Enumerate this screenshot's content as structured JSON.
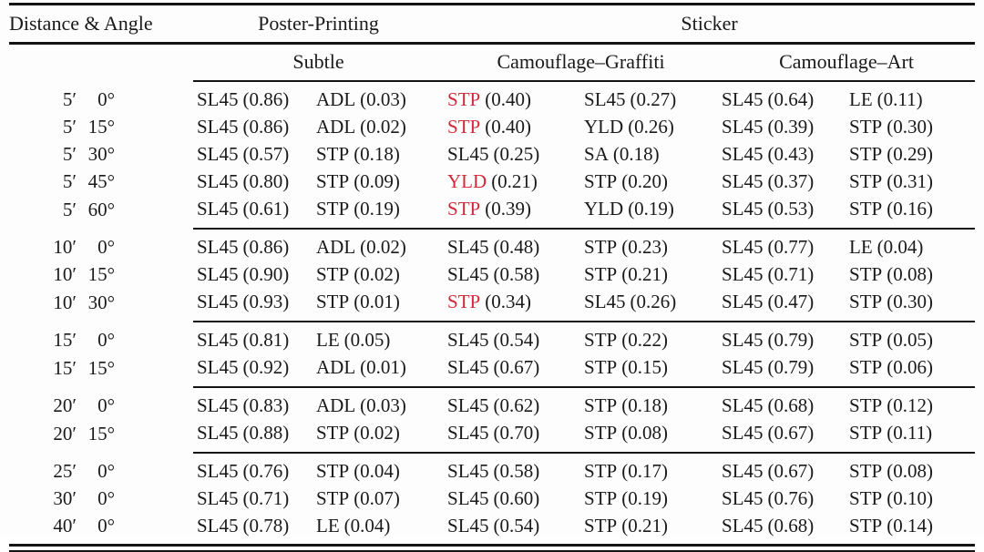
{
  "colors": {
    "red": "#d2293a",
    "ink": "#1a1a1a"
  },
  "table": {
    "header": {
      "col1": "Distance & Angle",
      "group_poster": "Poster-Printing",
      "group_sticker": "Sticker",
      "sub_subtle": "Subtle",
      "sub_graffiti": "Camouflage–Graffiti",
      "sub_art": "Camouflage–Art"
    },
    "groups": [
      {
        "rows": [
          {
            "d": "5′",
            "a": "0°",
            "cells": [
              {
                "m": "SL45",
                "v": "(0.86)"
              },
              {
                "m": "ADL",
                "v": "(0.03)"
              },
              {
                "m": "STP",
                "v": "(0.40)",
                "red": true
              },
              {
                "m": "SL45",
                "v": "(0.27)"
              },
              {
                "m": "SL45",
                "v": "(0.64)"
              },
              {
                "m": "LE",
                "v": "(0.11)"
              }
            ]
          },
          {
            "d": "5′",
            "a": "15°",
            "cells": [
              {
                "m": "SL45",
                "v": "(0.86)"
              },
              {
                "m": "ADL",
                "v": "(0.02)"
              },
              {
                "m": "STP",
                "v": "(0.40)",
                "red": true
              },
              {
                "m": "YLD",
                "v": "(0.26)"
              },
              {
                "m": "SL45",
                "v": "(0.39)"
              },
              {
                "m": "STP",
                "v": "(0.30)"
              }
            ]
          },
          {
            "d": "5′",
            "a": "30°",
            "cells": [
              {
                "m": "SL45",
                "v": "(0.57)"
              },
              {
                "m": "STP",
                "v": "(0.18)"
              },
              {
                "m": "SL45",
                "v": "(0.25)"
              },
              {
                "m": "SA",
                "v": "(0.18)"
              },
              {
                "m": "SL45",
                "v": "(0.43)"
              },
              {
                "m": "STP",
                "v": "(0.29)"
              }
            ]
          },
          {
            "d": "5′",
            "a": "45°",
            "cells": [
              {
                "m": "SL45",
                "v": "(0.80)"
              },
              {
                "m": "STP",
                "v": "(0.09)"
              },
              {
                "m": "YLD",
                "v": "(0.21)",
                "red": true
              },
              {
                "m": "STP",
                "v": "(0.20)"
              },
              {
                "m": "SL45",
                "v": "(0.37)"
              },
              {
                "m": "STP",
                "v": "(0.31)"
              }
            ]
          },
          {
            "d": "5′",
            "a": "60°",
            "cells": [
              {
                "m": "SL45",
                "v": "(0.61)"
              },
              {
                "m": "STP",
                "v": "(0.19)"
              },
              {
                "m": "STP",
                "v": "(0.39)",
                "red": true
              },
              {
                "m": "YLD",
                "v": "(0.19)"
              },
              {
                "m": "SL45",
                "v": "(0.53)"
              },
              {
                "m": "STP",
                "v": "(0.16)"
              }
            ]
          }
        ]
      },
      {
        "rows": [
          {
            "d": "10′",
            "a": "0°",
            "cells": [
              {
                "m": "SL45",
                "v": "(0.86)"
              },
              {
                "m": "ADL",
                "v": "(0.02)"
              },
              {
                "m": "SL45",
                "v": "(0.48)"
              },
              {
                "m": "STP",
                "v": "(0.23)"
              },
              {
                "m": "SL45",
                "v": "(0.77)"
              },
              {
                "m": "LE",
                "v": "(0.04)"
              }
            ]
          },
          {
            "d": "10′",
            "a": "15°",
            "cells": [
              {
                "m": "SL45",
                "v": "(0.90)"
              },
              {
                "m": "STP",
                "v": "(0.02)"
              },
              {
                "m": "SL45",
                "v": "(0.58)"
              },
              {
                "m": "STP",
                "v": "(0.21)"
              },
              {
                "m": "SL45",
                "v": "(0.71)"
              },
              {
                "m": "STP",
                "v": "(0.08)"
              }
            ]
          },
          {
            "d": "10′",
            "a": "30°",
            "cells": [
              {
                "m": "SL45",
                "v": "(0.93)"
              },
              {
                "m": "STP",
                "v": "(0.01)"
              },
              {
                "m": "STP",
                "v": "(0.34)",
                "red": true
              },
              {
                "m": "SL45",
                "v": "(0.26)"
              },
              {
                "m": "SL45",
                "v": "(0.47)"
              },
              {
                "m": "STP",
                "v": "(0.30)"
              }
            ]
          }
        ]
      },
      {
        "rows": [
          {
            "d": "15′",
            "a": "0°",
            "cells": [
              {
                "m": "SL45",
                "v": "(0.81)"
              },
              {
                "m": "LE",
                "v": "(0.05)"
              },
              {
                "m": "SL45",
                "v": "(0.54)"
              },
              {
                "m": "STP",
                "v": "(0.22)"
              },
              {
                "m": "SL45",
                "v": "(0.79)"
              },
              {
                "m": "STP",
                "v": "(0.05)"
              }
            ]
          },
          {
            "d": "15′",
            "a": "15°",
            "cells": [
              {
                "m": "SL45",
                "v": "(0.92)"
              },
              {
                "m": "ADL",
                "v": "(0.01)"
              },
              {
                "m": "SL45",
                "v": "(0.67)"
              },
              {
                "m": "STP",
                "v": "(0.15)"
              },
              {
                "m": "SL45",
                "v": "(0.79)"
              },
              {
                "m": "STP",
                "v": "(0.06)"
              }
            ]
          }
        ]
      },
      {
        "rows": [
          {
            "d": "20′",
            "a": "0°",
            "cells": [
              {
                "m": "SL45",
                "v": "(0.83)"
              },
              {
                "m": "ADL",
                "v": "(0.03)"
              },
              {
                "m": "SL45",
                "v": "(0.62)"
              },
              {
                "m": "STP",
                "v": "(0.18)"
              },
              {
                "m": "SL45",
                "v": "(0.68)"
              },
              {
                "m": "STP",
                "v": "(0.12)"
              }
            ]
          },
          {
            "d": "20′",
            "a": "15°",
            "cells": [
              {
                "m": "SL45",
                "v": "(0.88)"
              },
              {
                "m": "STP",
                "v": "(0.02)"
              },
              {
                "m": "SL45",
                "v": "(0.70)"
              },
              {
                "m": "STP",
                "v": "(0.08)"
              },
              {
                "m": "SL45",
                "v": "(0.67)"
              },
              {
                "m": "STP",
                "v": "(0.11)"
              }
            ]
          }
        ]
      },
      {
        "rows": [
          {
            "d": "25′",
            "a": "0°",
            "cells": [
              {
                "m": "SL45",
                "v": "(0.76)"
              },
              {
                "m": "STP",
                "v": "(0.04)"
              },
              {
                "m": "SL45",
                "v": "(0.58)"
              },
              {
                "m": "STP",
                "v": "(0.17)"
              },
              {
                "m": "SL45",
                "v": "(0.67)"
              },
              {
                "m": "STP",
                "v": "(0.08)"
              }
            ]
          },
          {
            "d": "30′",
            "a": "0°",
            "cells": [
              {
                "m": "SL45",
                "v": "(0.71)"
              },
              {
                "m": "STP",
                "v": "(0.07)"
              },
              {
                "m": "SL45",
                "v": "(0.60)"
              },
              {
                "m": "STP",
                "v": "(0.19)"
              },
              {
                "m": "SL45",
                "v": "(0.76)"
              },
              {
                "m": "STP",
                "v": "(0.10)"
              }
            ]
          },
          {
            "d": "40′",
            "a": "0°",
            "cells": [
              {
                "m": "SL45",
                "v": "(0.78)"
              },
              {
                "m": "LE",
                "v": "(0.04)"
              },
              {
                "m": "SL45",
                "v": "(0.54)"
              },
              {
                "m": "STP",
                "v": "(0.21)"
              },
              {
                "m": "SL45",
                "v": "(0.68)"
              },
              {
                "m": "STP",
                "v": "(0.14)"
              }
            ]
          }
        ]
      }
    ]
  }
}
